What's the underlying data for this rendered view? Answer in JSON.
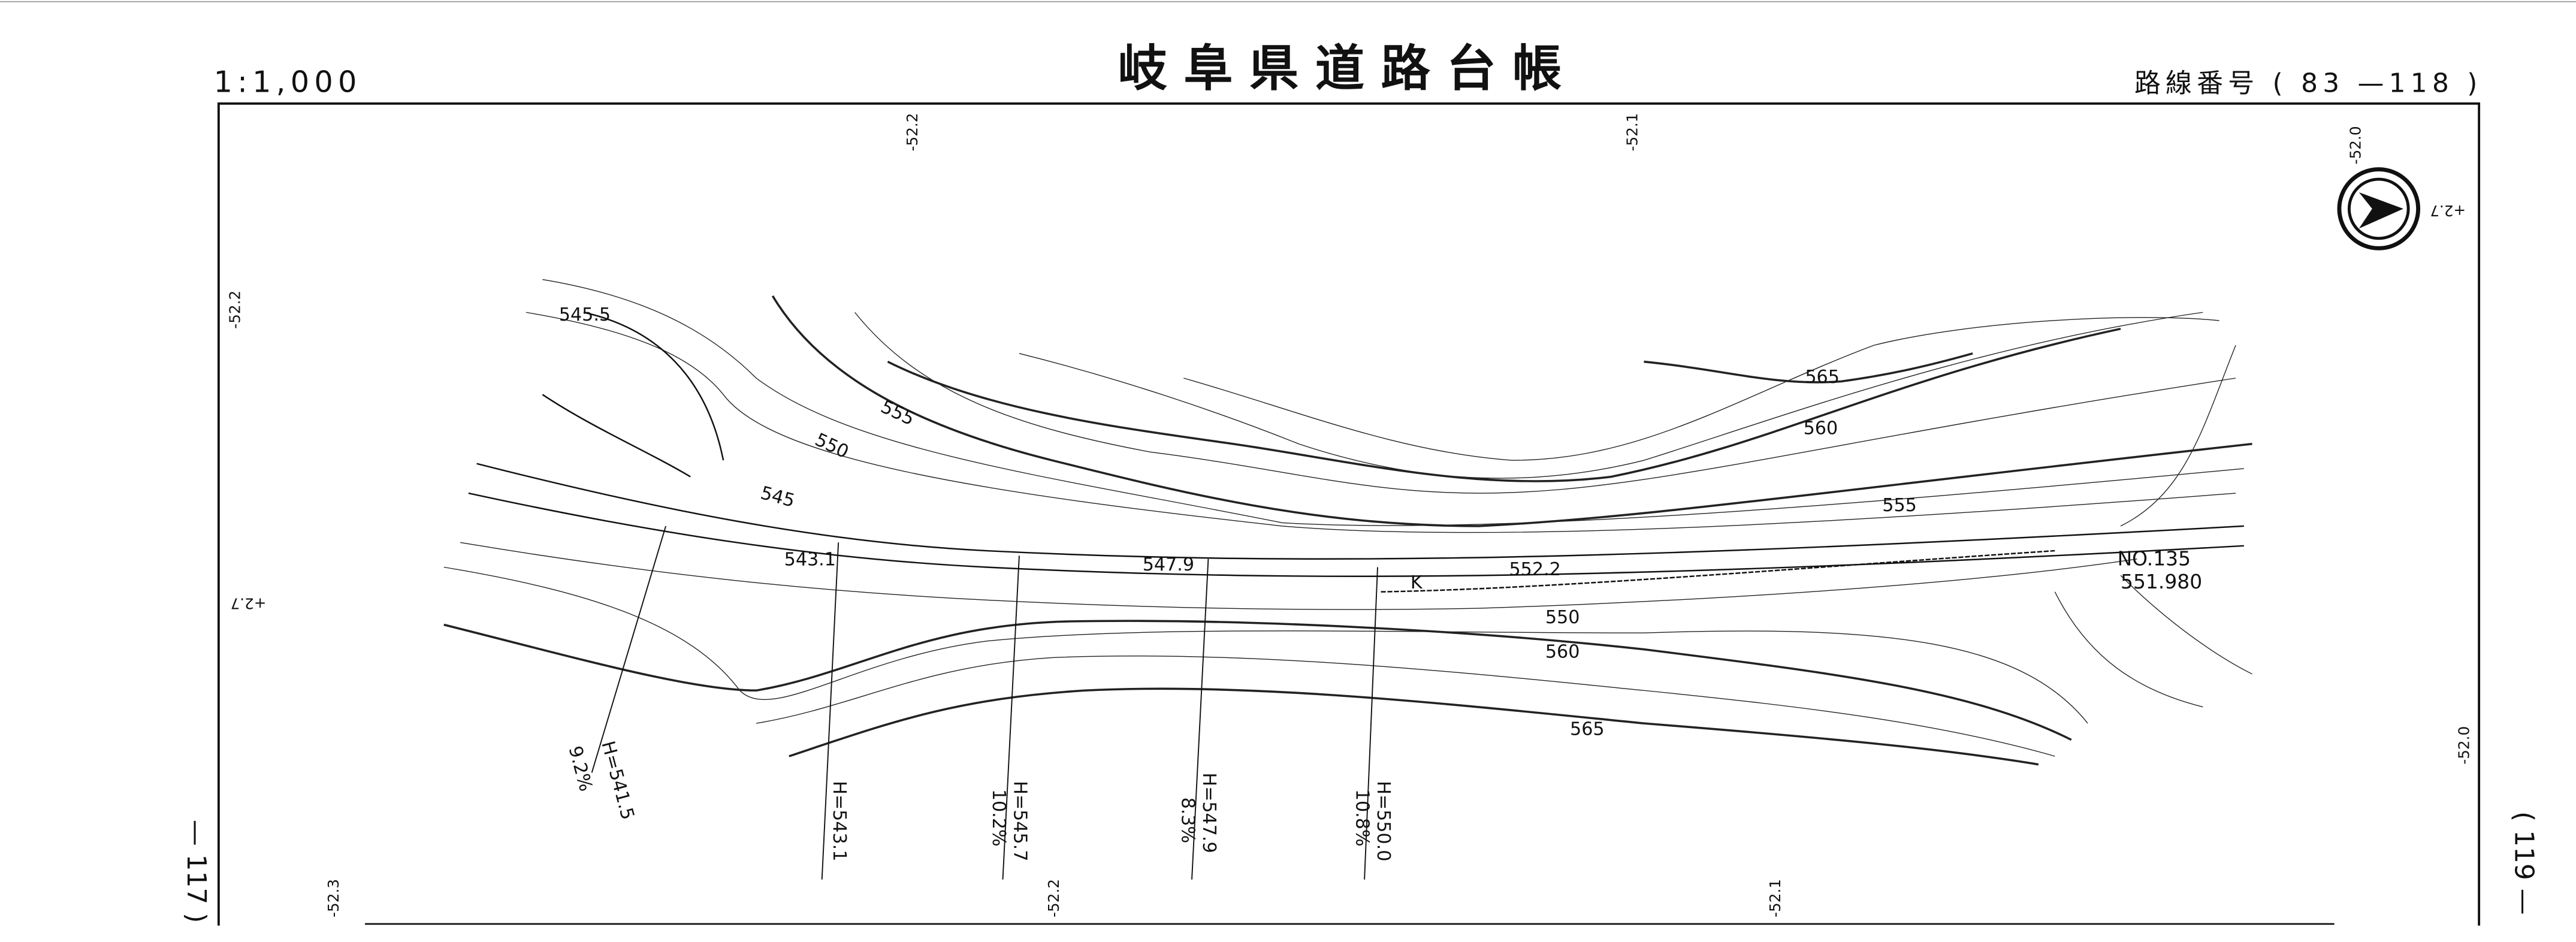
{
  "header": {
    "title": "岐阜県道路台帳",
    "scale": "1:1,000",
    "route": "路線番号 ( 83 —118 )"
  },
  "sheet_links": {
    "previous": "— 117 )",
    "next": "( 119 —"
  },
  "grid_coordinates": [
    "-52.2",
    "-52.1",
    "-52.0",
    "+2.7",
    "-52.2",
    "+2.7",
    "-52.0",
    "-52.3",
    "-52.2",
    "-52.1"
  ],
  "contours": [
    "545.5",
    "555",
    "550",
    "545",
    "565",
    "560",
    "555",
    "550",
    "560",
    "565"
  ],
  "spot_heights": [
    "543.1",
    "547.9",
    "552.2"
  ],
  "station": {
    "number": "NO.135",
    "elevation": "551.980"
  },
  "marker": "K",
  "profile_labels": [
    {
      "height": "H=541.5",
      "grade": "9.2%"
    },
    {
      "height": "H=543.1"
    },
    {
      "height": "H=545.7",
      "grade": "10.2%"
    },
    {
      "height": "H=547.9",
      "grade": "8.3%"
    },
    {
      "height": "H=550.0",
      "grade": "10.8%"
    }
  ]
}
